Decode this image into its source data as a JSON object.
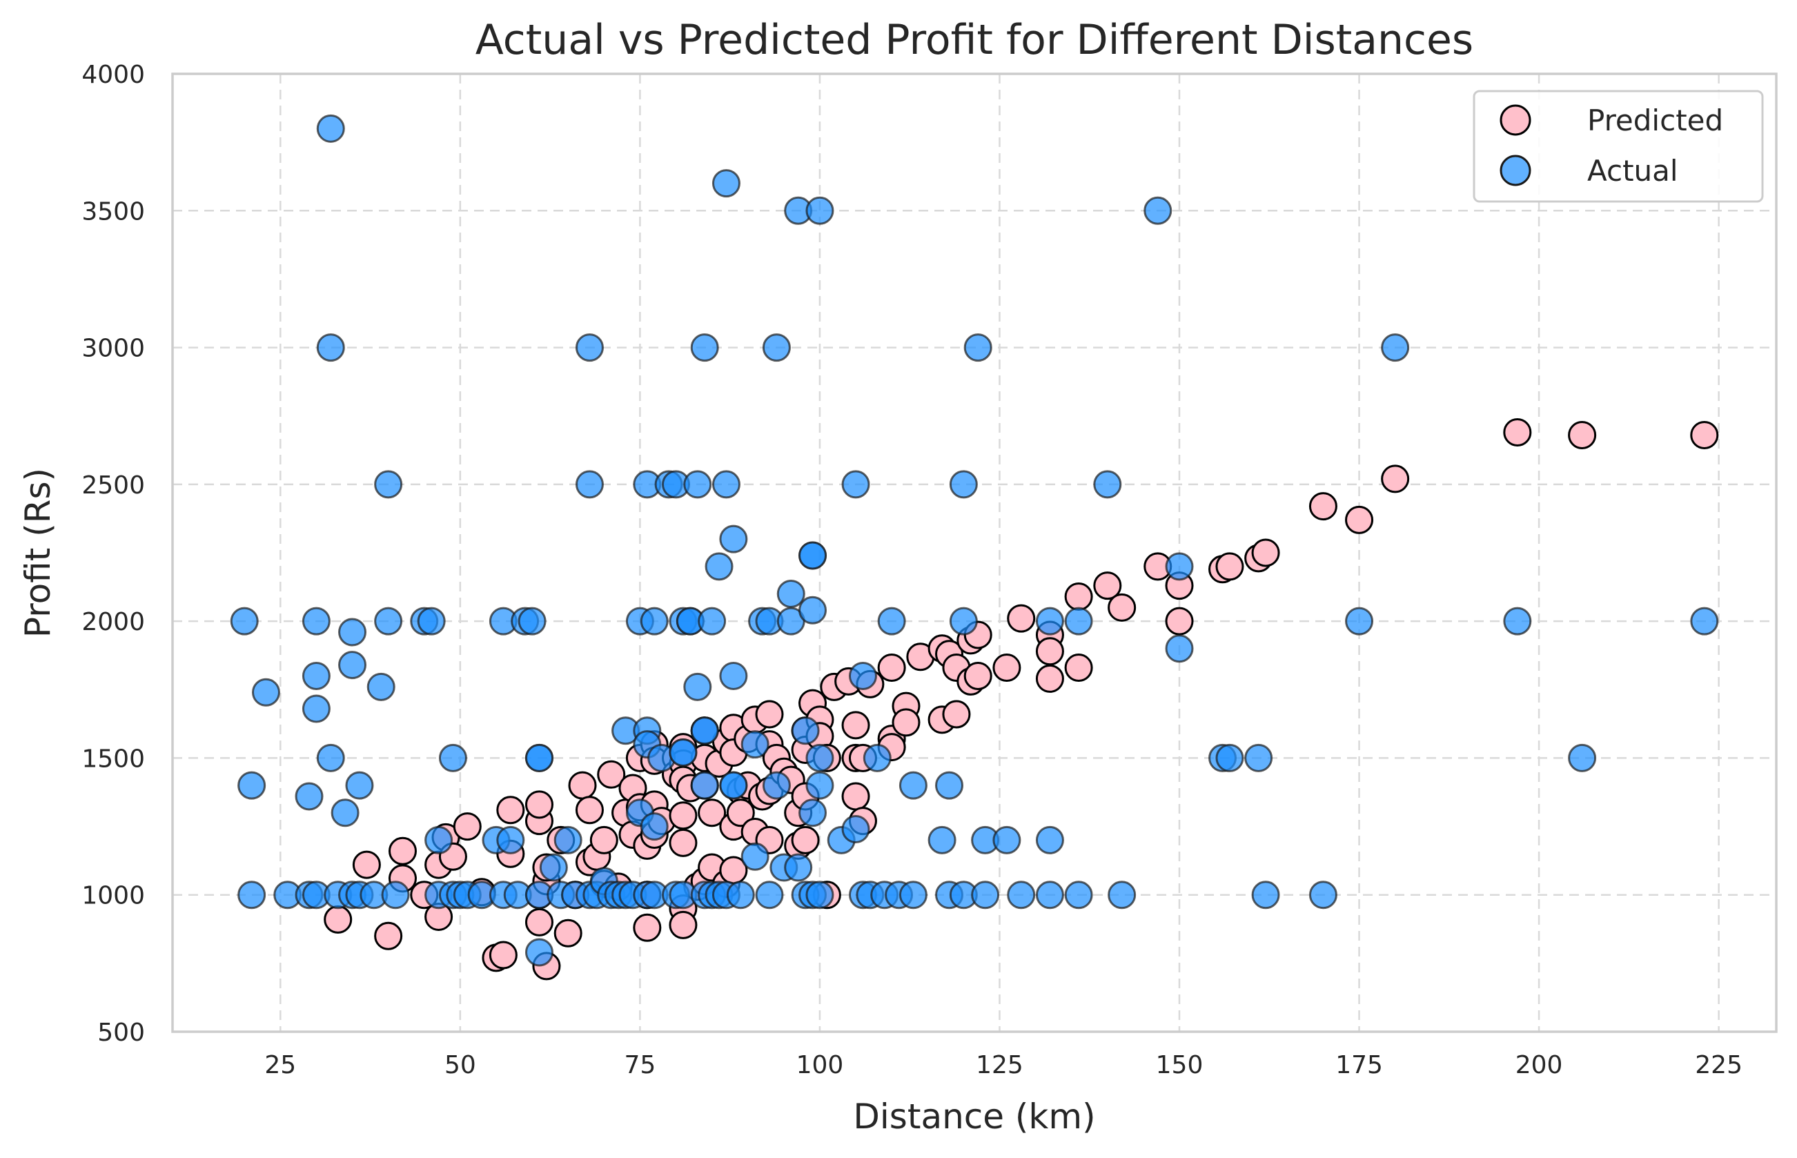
{
  "chart_data": {
    "type": "scatter",
    "title": "Actual vs Predicted Profit for Different Distances",
    "xlabel": "Distance (km)",
    "ylabel": "Profit (Rs)",
    "xlim": [
      10,
      233
    ],
    "ylim": [
      500,
      4000
    ],
    "xticks": [
      25,
      50,
      75,
      100,
      125,
      150,
      175,
      200,
      225
    ],
    "yticks": [
      500,
      1000,
      1500,
      2000,
      2500,
      3000,
      3500,
      4000
    ],
    "grid": true,
    "legend_position": "top-right",
    "series": [
      {
        "name": "Predicted",
        "color": "#ffc0cb",
        "edge": "#000000",
        "points": [
          [
            33,
            910
          ],
          [
            37,
            1110
          ],
          [
            40,
            850
          ],
          [
            42,
            1060
          ],
          [
            42,
            1160
          ],
          [
            45,
            1000
          ],
          [
            47,
            1110
          ],
          [
            47,
            920
          ],
          [
            48,
            1210
          ],
          [
            49,
            1140
          ],
          [
            51,
            1250
          ],
          [
            53,
            1010
          ],
          [
            55,
            770
          ],
          [
            56,
            780
          ],
          [
            57,
            1150
          ],
          [
            57,
            1310
          ],
          [
            61,
            1000
          ],
          [
            61,
            1270
          ],
          [
            61,
            1330
          ],
          [
            61,
            900
          ],
          [
            62,
            1050
          ],
          [
            62,
            1100
          ],
          [
            62,
            740
          ],
          [
            64,
            1200
          ],
          [
            65,
            860
          ],
          [
            66,
            1000
          ],
          [
            67,
            1400
          ],
          [
            68,
            1310
          ],
          [
            68,
            1120
          ],
          [
            69,
            1140
          ],
          [
            70,
            1200
          ],
          [
            70,
            1040
          ],
          [
            71,
            1440
          ],
          [
            72,
            1030
          ],
          [
            73,
            1300
          ],
          [
            74,
            1390
          ],
          [
            74,
            1220
          ],
          [
            75,
            1500
          ],
          [
            75,
            1320
          ],
          [
            76,
            1180
          ],
          [
            76,
            1000
          ],
          [
            76,
            880
          ],
          [
            77,
            1550
          ],
          [
            77,
            1490
          ],
          [
            77,
            1330
          ],
          [
            77,
            1220
          ],
          [
            78,
            1270
          ],
          [
            80,
            1500
          ],
          [
            80,
            1440
          ],
          [
            81,
            1540
          ],
          [
            81,
            1480
          ],
          [
            81,
            1420
          ],
          [
            81,
            1290
          ],
          [
            81,
            1190
          ],
          [
            81,
            950
          ],
          [
            81,
            890
          ],
          [
            82,
            1390
          ],
          [
            83,
            1030
          ],
          [
            84,
            1600
          ],
          [
            84,
            1500
          ],
          [
            84,
            1400
          ],
          [
            84,
            1050
          ],
          [
            85,
            1300
          ],
          [
            85,
            1100
          ],
          [
            86,
            1480
          ],
          [
            87,
            1560
          ],
          [
            87,
            1040
          ],
          [
            88,
            1610
          ],
          [
            88,
            1520
          ],
          [
            88,
            1250
          ],
          [
            88,
            1090
          ],
          [
            89,
            1380
          ],
          [
            89,
            1300
          ],
          [
            90,
            1570
          ],
          [
            90,
            1400
          ],
          [
            91,
            1640
          ],
          [
            91,
            1230
          ],
          [
            92,
            1360
          ],
          [
            93,
            1660
          ],
          [
            93,
            1550
          ],
          [
            93,
            1380
          ],
          [
            93,
            1200
          ],
          [
            94,
            1500
          ],
          [
            95,
            1450
          ],
          [
            96,
            1420
          ],
          [
            97,
            1300
          ],
          [
            97,
            1180
          ],
          [
            98,
            1600
          ],
          [
            98,
            1530
          ],
          [
            98,
            1360
          ],
          [
            98,
            1200
          ],
          [
            99,
            1700
          ],
          [
            100,
            1640
          ],
          [
            100,
            1580
          ],
          [
            101,
            1500
          ],
          [
            101,
            1000
          ],
          [
            102,
            1760
          ],
          [
            104,
            1780
          ],
          [
            105,
            1620
          ],
          [
            105,
            1500
          ],
          [
            105,
            1360
          ],
          [
            106,
            1500
          ],
          [
            106,
            1270
          ],
          [
            107,
            1770
          ],
          [
            110,
            1830
          ],
          [
            110,
            1570
          ],
          [
            110,
            1540
          ],
          [
            112,
            1690
          ],
          [
            112,
            1630
          ],
          [
            114,
            1870
          ],
          [
            117,
            1900
          ],
          [
            117,
            1640
          ],
          [
            118,
            1880
          ],
          [
            119,
            1830
          ],
          [
            119,
            1660
          ],
          [
            121,
            1930
          ],
          [
            121,
            1780
          ],
          [
            122,
            1800
          ],
          [
            122,
            1950
          ],
          [
            126,
            1830
          ],
          [
            128,
            2010
          ],
          [
            132,
            1950
          ],
          [
            132,
            1890
          ],
          [
            132,
            1790
          ],
          [
            136,
            2090
          ],
          [
            136,
            1830
          ],
          [
            140,
            2130
          ],
          [
            142,
            2050
          ],
          [
            147,
            2200
          ],
          [
            150,
            2130
          ],
          [
            150,
            2000
          ],
          [
            156,
            2190
          ],
          [
            157,
            2200
          ],
          [
            161,
            2230
          ],
          [
            162,
            2250
          ],
          [
            170,
            2420
          ],
          [
            175,
            2370
          ],
          [
            180,
            2520
          ],
          [
            197,
            2690
          ],
          [
            206,
            2680
          ],
          [
            223,
            2680
          ]
        ]
      },
      {
        "name": "Actual",
        "color": "#1e90ff",
        "edge": "#1a1a1a",
        "points": [
          [
            20,
            2000
          ],
          [
            21,
            1400
          ],
          [
            21,
            1000
          ],
          [
            23,
            1740
          ],
          [
            26,
            1000
          ],
          [
            29,
            1360
          ],
          [
            29,
            1000
          ],
          [
            30,
            2000
          ],
          [
            30,
            1800
          ],
          [
            30,
            1680
          ],
          [
            30,
            1000
          ],
          [
            32,
            3800
          ],
          [
            32,
            3000
          ],
          [
            32,
            1500
          ],
          [
            33,
            1000
          ],
          [
            34,
            1300
          ],
          [
            35,
            1960
          ],
          [
            35,
            1840
          ],
          [
            35,
            1000
          ],
          [
            36,
            1400
          ],
          [
            36,
            1000
          ],
          [
            38,
            1000
          ],
          [
            39,
            1760
          ],
          [
            40,
            2500
          ],
          [
            40,
            2000
          ],
          [
            41,
            1000
          ],
          [
            45,
            2000
          ],
          [
            46,
            2000
          ],
          [
            47,
            1200
          ],
          [
            47,
            1000
          ],
          [
            49,
            1500
          ],
          [
            49,
            1000
          ],
          [
            50,
            1000
          ],
          [
            51,
            1000
          ],
          [
            53,
            1000
          ],
          [
            55,
            1200
          ],
          [
            56,
            2000
          ],
          [
            56,
            1000
          ],
          [
            57,
            1200
          ],
          [
            58,
            1000
          ],
          [
            59,
            2000
          ],
          [
            60,
            2000
          ],
          [
            61,
            1000
          ],
          [
            61,
            1500
          ],
          [
            61,
            1500
          ],
          [
            61,
            790
          ],
          [
            63,
            1100
          ],
          [
            64,
            1000
          ],
          [
            65,
            1200
          ],
          [
            66,
            1000
          ],
          [
            68,
            3000
          ],
          [
            68,
            2500
          ],
          [
            68,
            1000
          ],
          [
            69,
            1000
          ],
          [
            70,
            1050
          ],
          [
            71,
            1000
          ],
          [
            72,
            1000
          ],
          [
            73,
            1600
          ],
          [
            73,
            1000
          ],
          [
            74,
            1000
          ],
          [
            75,
            2000
          ],
          [
            75,
            1300
          ],
          [
            76,
            2500
          ],
          [
            76,
            1600
          ],
          [
            76,
            1550
          ],
          [
            76,
            1000
          ],
          [
            77,
            2000
          ],
          [
            77,
            1250
          ],
          [
            77,
            1000
          ],
          [
            78,
            1500
          ],
          [
            79,
            2500
          ],
          [
            80,
            2500
          ],
          [
            80,
            1000
          ],
          [
            81,
            2000
          ],
          [
            81,
            1520
          ],
          [
            81,
            1520
          ],
          [
            81,
            1000
          ],
          [
            82,
            2000
          ],
          [
            82,
            2000
          ],
          [
            83,
            2500
          ],
          [
            83,
            1760
          ],
          [
            84,
            3000
          ],
          [
            84,
            1600
          ],
          [
            84,
            1600
          ],
          [
            84,
            1400
          ],
          [
            84,
            1000
          ],
          [
            85,
            2000
          ],
          [
            85,
            1000
          ],
          [
            86,
            2200
          ],
          [
            86,
            1000
          ],
          [
            87,
            3600
          ],
          [
            87,
            2500
          ],
          [
            87,
            1000
          ],
          [
            88,
            2300
          ],
          [
            88,
            1800
          ],
          [
            88,
            1400
          ],
          [
            88,
            1400
          ],
          [
            89,
            1000
          ],
          [
            91,
            1140
          ],
          [
            91,
            1550
          ],
          [
            92,
            2000
          ],
          [
            93,
            2000
          ],
          [
            93,
            1000
          ],
          [
            94,
            3000
          ],
          [
            94,
            1400
          ],
          [
            95,
            1100
          ],
          [
            96,
            2100
          ],
          [
            96,
            2000
          ],
          [
            97,
            3500
          ],
          [
            97,
            1100
          ],
          [
            98,
            1600
          ],
          [
            98,
            1000
          ],
          [
            99,
            2240
          ],
          [
            99,
            2240
          ],
          [
            99,
            2040
          ],
          [
            99,
            1300
          ],
          [
            99,
            1000
          ],
          [
            100,
            1400
          ],
          [
            100,
            1500
          ],
          [
            100,
            3500
          ],
          [
            100,
            1000
          ],
          [
            103,
            1200
          ],
          [
            105,
            2500
          ],
          [
            105,
            1240
          ],
          [
            106,
            1800
          ],
          [
            106,
            1000
          ],
          [
            107,
            1000
          ],
          [
            108,
            1500
          ],
          [
            109,
            1000
          ],
          [
            110,
            2000
          ],
          [
            111,
            1000
          ],
          [
            113,
            1400
          ],
          [
            113,
            1000
          ],
          [
            117,
            1200
          ],
          [
            118,
            1400
          ],
          [
            118,
            1000
          ],
          [
            120,
            2500
          ],
          [
            120,
            2000
          ],
          [
            120,
            1000
          ],
          [
            122,
            3000
          ],
          [
            123,
            1200
          ],
          [
            123,
            1000
          ],
          [
            126,
            1200
          ],
          [
            128,
            1000
          ],
          [
            132,
            2000
          ],
          [
            132,
            1200
          ],
          [
            132,
            1000
          ],
          [
            136,
            2000
          ],
          [
            136,
            1000
          ],
          [
            140,
            2500
          ],
          [
            142,
            1000
          ],
          [
            147,
            3500
          ],
          [
            150,
            2200
          ],
          [
            150,
            1900
          ],
          [
            156,
            1500
          ],
          [
            157,
            1500
          ],
          [
            161,
            1500
          ],
          [
            162,
            1000
          ],
          [
            170,
            1000
          ],
          [
            175,
            2000
          ],
          [
            180,
            3000
          ],
          [
            197,
            2000
          ],
          [
            206,
            1500
          ],
          [
            223,
            2000
          ]
        ]
      }
    ]
  }
}
